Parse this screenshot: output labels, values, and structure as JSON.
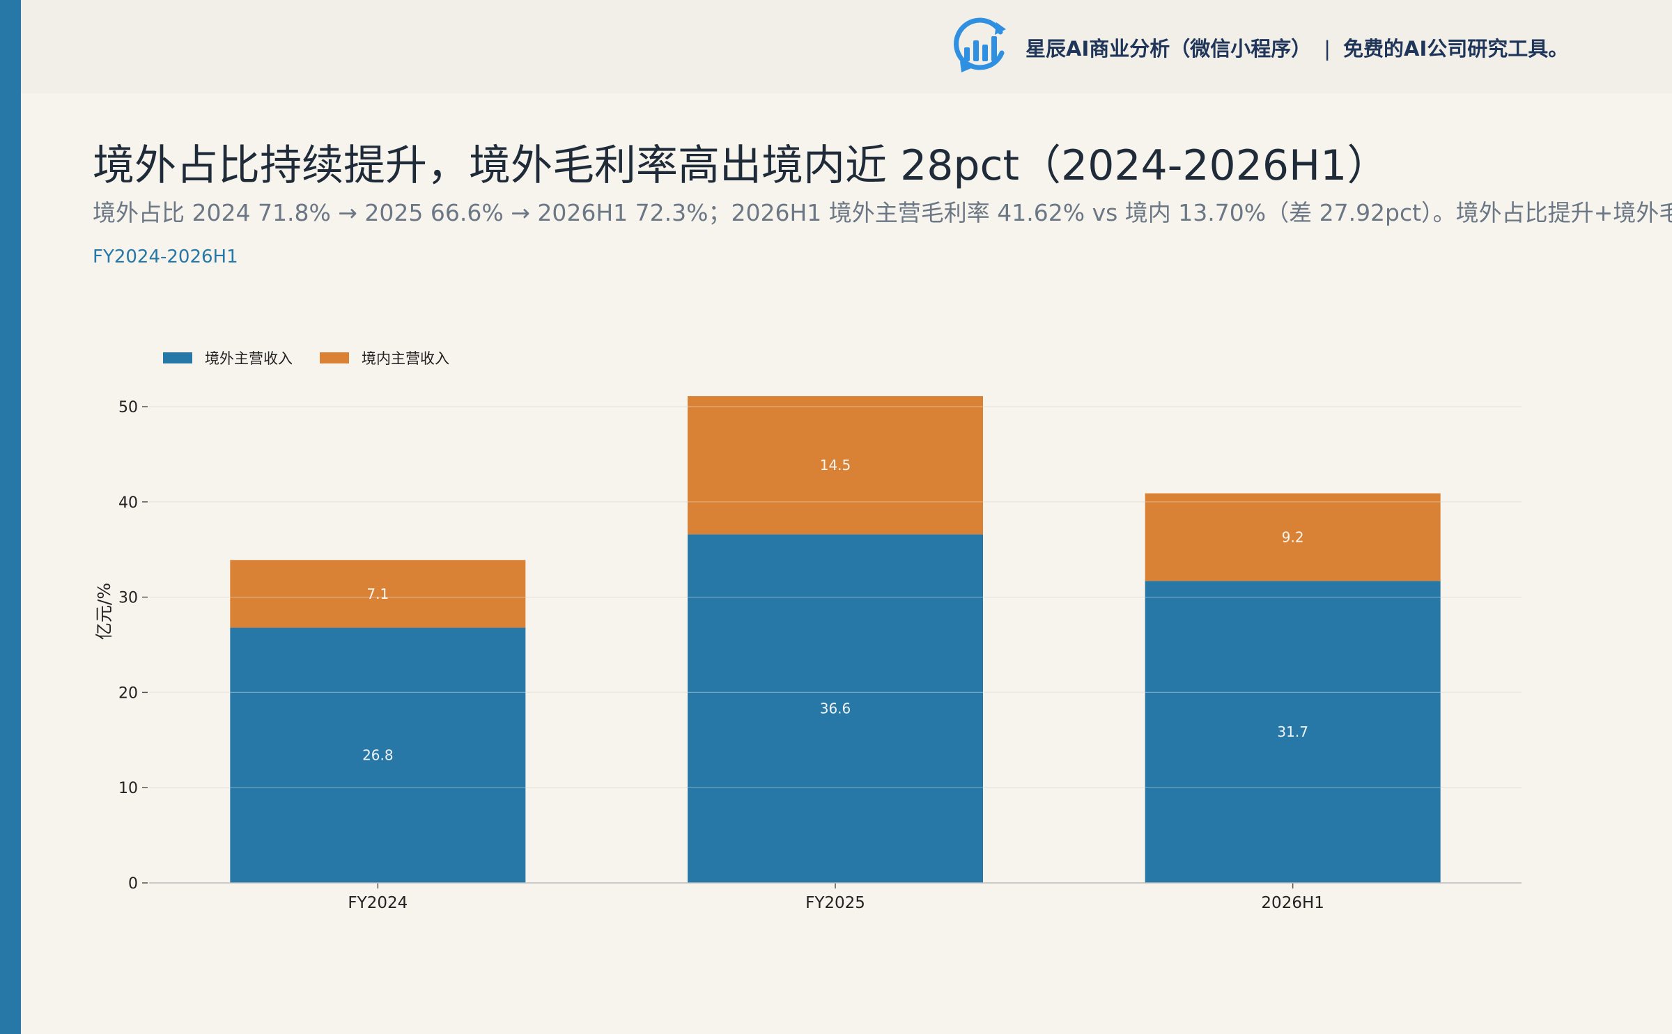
{
  "brand": {
    "logo_icon": "bar-chart-refresh-icon",
    "name": "星辰AI商业分析（微信小程序）",
    "separator": "|",
    "tagline": "免费的AI公司研究工具。"
  },
  "title": "境外占比持续提升，境外毛利率高出境内近 28pct（2024-2026H1）",
  "subtitle": "境外占比 2024 71.8% → 2025 66.6% → 2026H1 72.3%；2026H1 境外主营毛利率 41.62% vs 境内 13.70%（差 27.92pct）。境外占比提升+境外毛利率改善",
  "period": "FY2024-2026H1",
  "chart_data": {
    "type": "bar",
    "stacked": true,
    "categories": [
      "FY2024",
      "FY2025",
      "2026H1"
    ],
    "series": [
      {
        "name": "境外主营收入",
        "values": [
          26.8,
          36.6,
          31.7
        ],
        "labels": [
          "26.8",
          "36.6",
          "31.7"
        ],
        "color": "#2878a7"
      },
      {
        "name": "境内主营收入",
        "values": [
          7.1,
          14.5,
          9.2
        ],
        "labels": [
          "7.1",
          "14.5",
          "9.2"
        ],
        "color": "#d98235"
      }
    ],
    "ylabel": "亿元/%",
    "ylim": [
      0,
      52
    ],
    "yticks": [
      0,
      10,
      20,
      30,
      40,
      50
    ],
    "ytick_labels": [
      "0",
      "10",
      "20",
      "30",
      "40",
      "50"
    ],
    "grid": true,
    "legend": "top-left"
  }
}
